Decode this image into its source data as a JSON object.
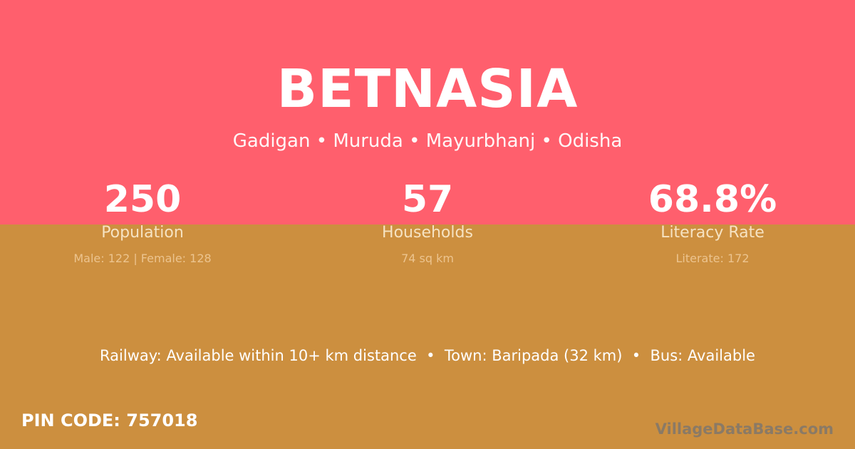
{
  "village": {
    "name": "BETNASIA",
    "location": "Gadigan • Muruda • Mayurbhanj • Odisha"
  },
  "stats": [
    {
      "value": "250",
      "label": "Population",
      "detail": "Male: 122 | Female: 128"
    },
    {
      "value": "57",
      "label": "Households",
      "detail": "74 sq km"
    },
    {
      "value": "68.8%",
      "label": "Literacy Rate",
      "detail": "Literate: 172"
    }
  ],
  "transport": "Railway: Available within 10+ km distance  •  Town: Baripada (32 km)  •  Bus: Available",
  "pin": "PIN CODE: 757018",
  "brand": "VillageDataBase.com",
  "colors": {
    "top": "#ff5f6d",
    "bottom": "#cc8f3f"
  }
}
